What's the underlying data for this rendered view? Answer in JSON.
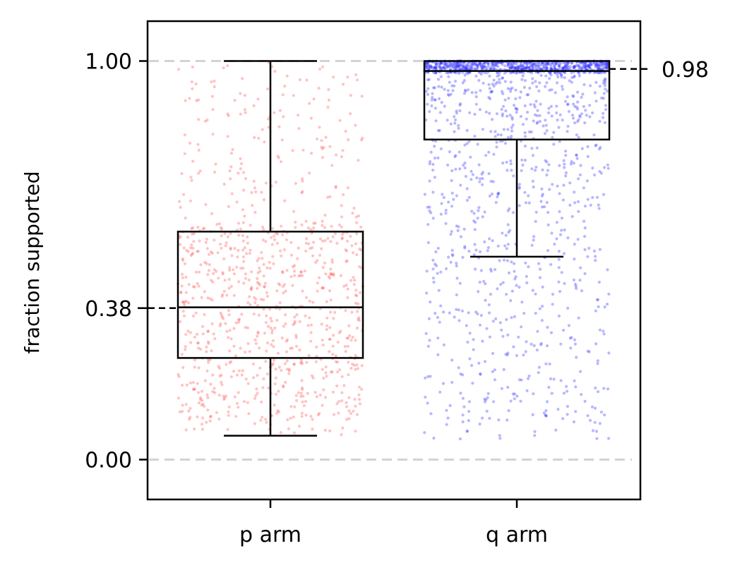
{
  "chart_data": {
    "type": "box",
    "ylabel": "fraction supported",
    "ylim": [
      -0.1,
      1.1
    ],
    "categories": [
      "p arm",
      "q arm"
    ],
    "yticks": [
      {
        "value": 0.0,
        "label": "0.00"
      },
      {
        "value": 0.38,
        "label": "0.38"
      },
      {
        "value": 1.0,
        "label": "1.00"
      }
    ],
    "reference_lines": [
      0.0,
      1.0
    ],
    "boxes": [
      {
        "category": "p arm",
        "whisker_low": 0.06,
        "q1": 0.255,
        "median": 0.382,
        "q3": 0.572,
        "whisker_high": 1.0,
        "color": "#ff5555",
        "points": {
          "count": 900,
          "min": 0.06,
          "max": 1.0,
          "dense_min": 0.1,
          "dense_max": 0.6
        }
      },
      {
        "category": "q arm",
        "whisker_low": 0.509,
        "q1": 0.803,
        "median": 0.975,
        "q3": 1.0,
        "whisker_high": 1.0,
        "color": "#3333ff",
        "points": {
          "count": 1600,
          "min": 0.05,
          "max": 1.0,
          "dense_min": 0.8,
          "dense_max": 1.0
        }
      }
    ],
    "median_annotations": [
      {
        "category": "p arm",
        "value": 0.38,
        "label": "0.38",
        "side": "left"
      },
      {
        "category": "q arm",
        "value": 0.98,
        "label": "0.98",
        "side": "right"
      }
    ],
    "grid": false,
    "legend": "none"
  }
}
